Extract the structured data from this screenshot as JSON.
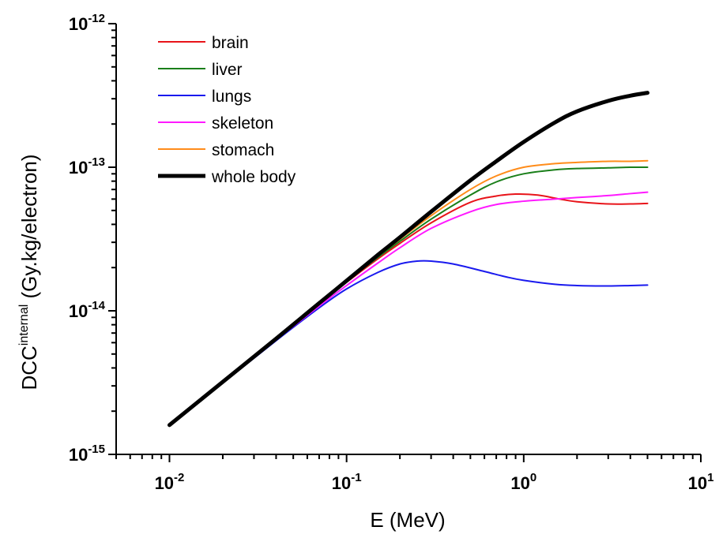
{
  "chart_data": {
    "type": "line",
    "title": "",
    "xlabel": "E (MeV)",
    "ylabel": {
      "base": "DCC",
      "superscript": "internal",
      "suffix": " (Gy.kg/electron)"
    },
    "xscale": "log",
    "yscale": "log",
    "xlim": [
      0.005,
      10
    ],
    "ylim": [
      1e-15,
      1e-12
    ],
    "x_ticks": [
      {
        "value": 0.01,
        "base": "10",
        "exp": "-2"
      },
      {
        "value": 0.1,
        "base": "10",
        "exp": "-1"
      },
      {
        "value": 1,
        "base": "10",
        "exp": "0"
      },
      {
        "value": 10,
        "base": "10",
        "exp": "1"
      }
    ],
    "y_ticks": [
      {
        "value": 1e-15,
        "base": "10",
        "exp": "-15"
      },
      {
        "value": 1e-14,
        "base": "10",
        "exp": "-14"
      },
      {
        "value": 1e-13,
        "base": "10",
        "exp": "-13"
      },
      {
        "value": 1e-12,
        "base": "10",
        "exp": "-12"
      }
    ],
    "grid": false,
    "legend_position": "top-left",
    "series": [
      {
        "name": "brain",
        "color": "#e8141a",
        "width": 2,
        "x": [
          0.01,
          0.02,
          0.04,
          0.07,
          0.1,
          0.15,
          0.2,
          0.3,
          0.5,
          0.7,
          0.9,
          1.2,
          1.6,
          2,
          3,
          4,
          5
        ],
        "y": [
          1.6e-15,
          3.2e-15,
          6.4e-15,
          1.12e-14,
          1.58e-14,
          2.3e-14,
          2.95e-14,
          4.1e-14,
          5.7e-14,
          6.3e-14,
          6.5e-14,
          6.4e-14,
          6e-14,
          5.75e-14,
          5.55e-14,
          5.55e-14,
          5.6e-14
        ]
      },
      {
        "name": "liver",
        "color": "#1a7f1a",
        "width": 2,
        "x": [
          0.01,
          0.02,
          0.04,
          0.07,
          0.1,
          0.15,
          0.2,
          0.3,
          0.5,
          0.7,
          1,
          1.5,
          2,
          3,
          4,
          5
        ],
        "y": [
          1.6e-15,
          3.2e-15,
          6.4e-15,
          1.12e-14,
          1.6e-14,
          2.35e-14,
          3.05e-14,
          4.35e-14,
          6.4e-14,
          7.9e-14,
          9e-14,
          9.6e-14,
          9.8e-14,
          9.9e-14,
          1e-13,
          1e-13
        ]
      },
      {
        "name": "lungs",
        "color": "#1a1aee",
        "width": 2,
        "x": [
          0.01,
          0.02,
          0.04,
          0.07,
          0.1,
          0.15,
          0.2,
          0.25,
          0.3,
          0.4,
          0.6,
          0.8,
          1,
          1.5,
          2,
          3,
          4,
          5
        ],
        "y": [
          1.6e-15,
          3.15e-15,
          6.2e-15,
          1.05e-14,
          1.42e-14,
          1.85e-14,
          2.12e-14,
          2.22e-14,
          2.22e-14,
          2.12e-14,
          1.88e-14,
          1.72e-14,
          1.63e-14,
          1.53e-14,
          1.5e-14,
          1.49e-14,
          1.5e-14,
          1.51e-14
        ]
      },
      {
        "name": "skeleton",
        "color": "#ff1aff",
        "width": 2,
        "x": [
          0.01,
          0.02,
          0.04,
          0.07,
          0.1,
          0.15,
          0.2,
          0.3,
          0.5,
          0.7,
          1,
          1.5,
          2,
          3,
          4,
          5
        ],
        "y": [
          1.6e-15,
          3.2e-15,
          6.3e-15,
          1.08e-14,
          1.5e-14,
          2.15e-14,
          2.75e-14,
          3.75e-14,
          4.9e-14,
          5.5e-14,
          5.8e-14,
          6e-14,
          6.15e-14,
          6.35e-14,
          6.55e-14,
          6.7e-14
        ]
      },
      {
        "name": "stomach",
        "color": "#ff8c1a",
        "width": 2,
        "x": [
          0.01,
          0.02,
          0.04,
          0.07,
          0.1,
          0.15,
          0.2,
          0.3,
          0.5,
          0.7,
          1,
          1.5,
          2,
          3,
          4,
          5
        ],
        "y": [
          1.6e-15,
          3.2e-15,
          6.4e-15,
          1.13e-14,
          1.62e-14,
          2.4e-14,
          3.15e-14,
          4.6e-14,
          7e-14,
          8.7e-14,
          1e-13,
          1.06e-13,
          1.08e-13,
          1.1e-13,
          1.1e-13,
          1.11e-13
        ]
      },
      {
        "name": "whole body",
        "color": "#000000",
        "width": 5,
        "x": [
          0.01,
          0.02,
          0.04,
          0.07,
          0.1,
          0.15,
          0.2,
          0.3,
          0.5,
          0.7,
          1,
          1.5,
          2,
          3,
          4,
          5
        ],
        "y": [
          1.6e-15,
          3.2e-15,
          6.4e-15,
          1.13e-14,
          1.62e-14,
          2.45e-14,
          3.25e-14,
          4.9e-14,
          8.1e-14,
          1.1e-13,
          1.5e-13,
          2.05e-13,
          2.45e-13,
          2.9e-13,
          3.15e-13,
          3.3e-13
        ]
      }
    ]
  }
}
